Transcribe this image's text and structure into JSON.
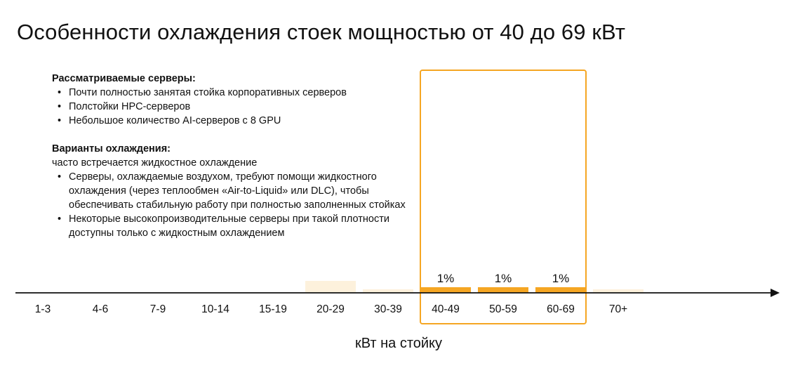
{
  "title": "Особенности охлаждения стоек мощностью от 40 до 69 кВт",
  "info": {
    "servers_heading": "Рассматриваемые серверы:",
    "servers_items": [
      "Почти полностью занятая стойка корпоративных серверов",
      "Полстойки HPC-серверов",
      "Небольшое количество AI-серверов с 8 GPU"
    ],
    "cooling_heading": "Варианты охлаждения:",
    "cooling_intro": "часто встречается жидкостное охлаждение",
    "cooling_items": [
      "Серверы, охлаждаемые воздухом, требуют помощи жидкостного охлаждения (через теплообмен «Air-to-Liquid» или DLC), чтобы обеспечивать стабильную работу при полностью заполненных стойках",
      "Некоторые высокопроизводительные серверы при такой плотности доступны только с жидкостным охлаждением"
    ]
  },
  "chart_data": {
    "type": "bar",
    "xlabel": "кВт на стойку",
    "ylabel": "",
    "categories": [
      "1-3",
      "4-6",
      "7-9",
      "10-14",
      "15-19",
      "20-29",
      "30-39",
      "40-49",
      "50-59",
      "60-69",
      "70+"
    ],
    "values": [
      0,
      0,
      0,
      0,
      0,
      4,
      1,
      1,
      1,
      1,
      1
    ],
    "value_labels": [
      "",
      "",
      "",
      "",
      "",
      "",
      "",
      "1%",
      "1%",
      "1%",
      ""
    ],
    "highlighted_categories": [
      "40-49",
      "50-59",
      "60-69"
    ],
    "ylim": [
      0,
      40
    ],
    "grid": false,
    "colors": {
      "highlight_bar": "#F5A623",
      "faded_bar": "#FDF1DC",
      "highlight_frame": "#F5A623",
      "axis": "#111111"
    }
  }
}
